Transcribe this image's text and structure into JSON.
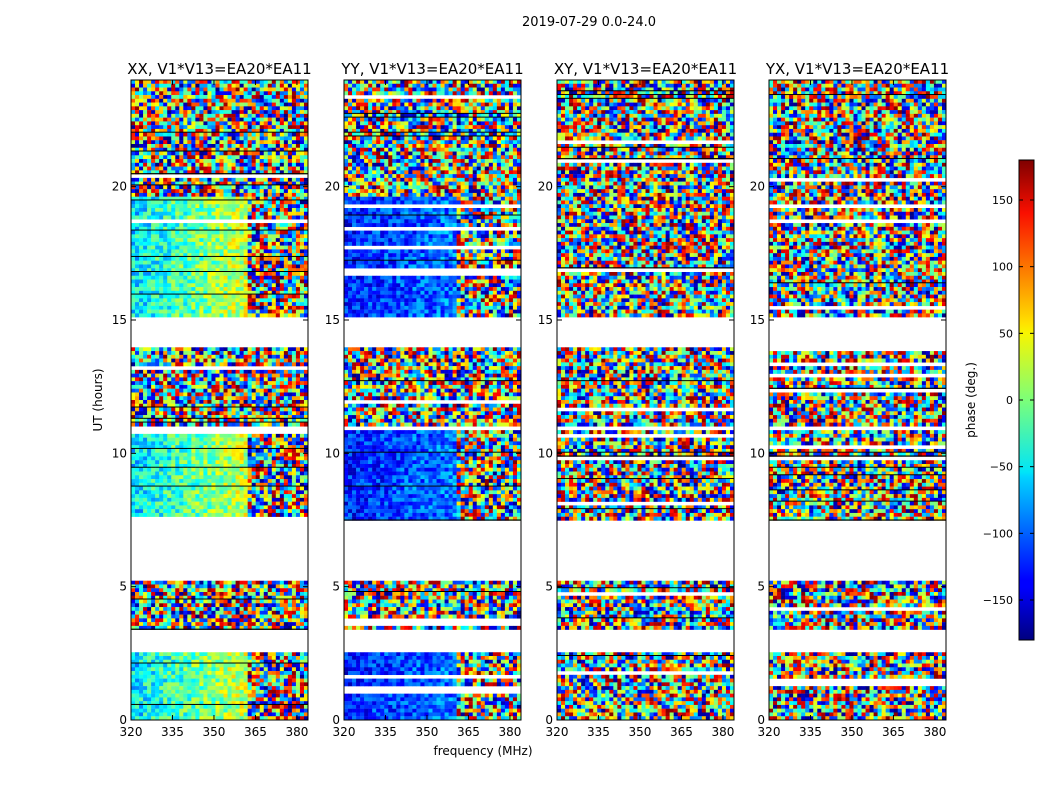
{
  "chart_data": {
    "type": "heatmap",
    "title": "2019-07-29 0.0-24.0",
    "xlabel": "frequency (MHz)",
    "ylabel": "UT (hours)",
    "xlim": [
      320,
      384
    ],
    "ylim": [
      0,
      24
    ],
    "x_ticks": [
      320,
      335,
      350,
      365,
      380
    ],
    "y_ticks": [
      0,
      5,
      10,
      15,
      20
    ],
    "panels": [
      {
        "title": "XX, V1*V13=EA20*EA11",
        "pol": "XX"
      },
      {
        "title": "YY, V1*V13=EA20*EA11",
        "pol": "YY"
      },
      {
        "title": "XY, V1*V13=EA20*EA11",
        "pol": "XY"
      },
      {
        "title": "YX, V1*V13=EA20*EA11",
        "pol": "YX"
      }
    ],
    "data_blocks_ut": [
      [
        0,
        2.6
      ],
      [
        3.4,
        5.2
      ],
      [
        7.5,
        10.9
      ],
      [
        11.0,
        14.0
      ],
      [
        15.1,
        19.6
      ],
      [
        19.6,
        24.0
      ]
    ],
    "colorbar": {
      "label": "phase (deg.)",
      "range": [
        -180,
        180
      ],
      "ticks": [
        150,
        100,
        50,
        0,
        -50,
        -100,
        -150
      ],
      "tick_labels": [
        "150",
        "100",
        "50",
        "0",
        "−50",
        "−100",
        "−150"
      ],
      "colormap": "jet"
    }
  }
}
